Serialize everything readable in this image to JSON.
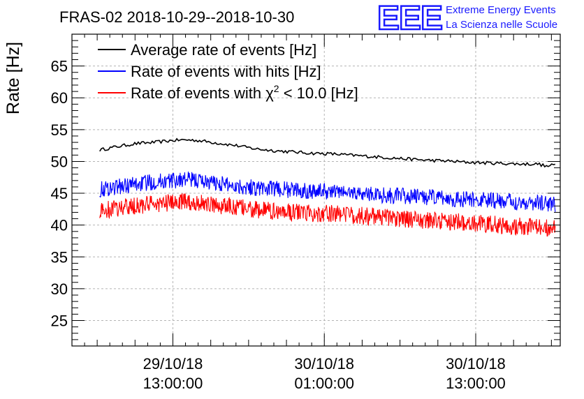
{
  "header": {
    "title": "FRAS-02 2018-10-29--2018-10-30",
    "logo_text": "EEE",
    "logo_line1": "Extreme Energy Events",
    "logo_line2": "La Scienza nelle Scuole"
  },
  "colors": {
    "average": "#000000",
    "hits": "#0000ff",
    "chi2": "#ff0000",
    "logo": "#1a1aff",
    "grid": "#b4b4b4"
  },
  "chart_data": {
    "type": "line",
    "title": "FRAS-02 2018-10-29--2018-10-30",
    "xlabel": "",
    "ylabel": "Rate [Hz]",
    "ylim": [
      21,
      70
    ],
    "y_ticks": [
      25,
      30,
      35,
      40,
      45,
      50,
      55,
      60,
      65
    ],
    "x_unit": "hours since 2018-10-29 00:00",
    "xlim": [
      5.0,
      43.7
    ],
    "x_ticks": [
      {
        "x": 13,
        "label_line1": "29/10/18",
        "label_line2": "13:00:00"
      },
      {
        "x": 25,
        "label_line1": "30/10/18",
        "label_line2": "01:00:00"
      },
      {
        "x": 37,
        "label_line1": "30/10/18",
        "label_line2": "13:00:00"
      }
    ],
    "grid": true,
    "legend_position": "top-left",
    "series": [
      {
        "name": "Average rate of events [Hz]",
        "color": "#000000",
        "x": [
          7.2,
          8.5,
          10,
          11.5,
          13,
          14,
          15,
          16.5,
          18,
          19.5,
          21,
          22.5,
          24,
          25.5,
          27,
          28.5,
          30,
          31.5,
          33,
          34.5,
          36,
          37.5,
          39,
          40.5,
          42,
          42.6,
          43.3
        ],
        "y": [
          51.8,
          52.3,
          52.8,
          53.0,
          53.3,
          53.4,
          53.3,
          52.9,
          52.5,
          52.0,
          51.7,
          51.5,
          51.3,
          51.2,
          51.0,
          50.8,
          50.6,
          50.4,
          50.2,
          50.1,
          49.9,
          49.8,
          49.7,
          49.6,
          49.6,
          49.2,
          49.5
        ]
      },
      {
        "name": "Rate of events with hits [Hz]",
        "color": "#0000ff",
        "x": [
          7.2,
          8.5,
          10,
          11.5,
          13,
          14,
          15,
          16.5,
          18,
          19.5,
          21,
          22.5,
          24,
          25.5,
          27,
          28.5,
          30,
          31.5,
          33,
          34.5,
          36,
          37.5,
          39,
          40.5,
          42,
          42.6,
          43.3
        ],
        "y": [
          45.6,
          46.0,
          46.4,
          46.8,
          47.0,
          47.2,
          47.0,
          46.6,
          46.2,
          45.9,
          45.7,
          45.5,
          45.4,
          45.3,
          45.1,
          44.9,
          44.7,
          44.5,
          44.4,
          44.2,
          44.0,
          43.9,
          43.8,
          43.6,
          43.5,
          43.4,
          43.3
        ]
      },
      {
        "name": "Rate of events with χ² < 10.0 [Hz]",
        "color": "#ff0000",
        "x": [
          7.2,
          8.5,
          10,
          11.5,
          13,
          14,
          15,
          16.5,
          18,
          19.5,
          21,
          22.5,
          24,
          25.5,
          27,
          28.5,
          30,
          31.5,
          33,
          34.5,
          36,
          37.5,
          39,
          40.5,
          42,
          42.6,
          43.3
        ],
        "y": [
          42.2,
          42.6,
          43.0,
          43.3,
          43.5,
          43.7,
          43.5,
          43.1,
          42.8,
          42.4,
          42.2,
          42.0,
          41.9,
          41.8,
          41.6,
          41.4,
          41.2,
          41.0,
          40.8,
          40.6,
          40.4,
          40.2,
          40.0,
          39.8,
          39.6,
          39.5,
          39.4
        ]
      }
    ],
    "legend_labels": {
      "average": "Average rate of events [Hz]",
      "hits": "Rate of events with hits [Hz]",
      "chi2_prefix": "Rate of events with ",
      "chi2_symbol": "χ",
      "chi2_sup": "2",
      "chi2_suffix": " < 10.0 [Hz]"
    }
  }
}
